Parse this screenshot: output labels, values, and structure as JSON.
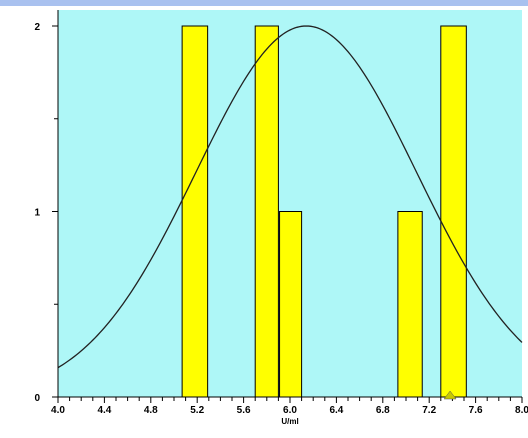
{
  "chart_data": {
    "type": "bar",
    "title": "",
    "xlabel": "U/ml",
    "ylabel": "",
    "xlim": [
      4.0,
      8.0
    ],
    "ylim": [
      0,
      2
    ],
    "x_ticks_labeled": [
      "4.0",
      "4.4",
      "4.8",
      "5.2",
      "5.6",
      "6.0",
      "6.4",
      "6.8",
      "7.2",
      "7.6",
      "8.0"
    ],
    "y_ticks_labeled": [
      "0",
      "1",
      "2"
    ],
    "bars": [
      {
        "x0": 5.07,
        "x1": 5.29,
        "value": 2
      },
      {
        "x0": 5.7,
        "x1": 5.9,
        "value": 2
      },
      {
        "x0": 5.91,
        "x1": 6.1,
        "value": 1
      },
      {
        "x0": 6.93,
        "x1": 7.14,
        "value": 1
      },
      {
        "x0": 7.3,
        "x1": 7.52,
        "value": 2
      }
    ],
    "normal_curve": {
      "mean": 6.14,
      "sd": 0.95,
      "peak": 2.0
    },
    "marker_x": 7.38,
    "grid": false,
    "colors": {
      "plot_background": "#aef7f7",
      "bar_fill": "#ffff00",
      "bar_stroke": "#000000",
      "curve": "#222222",
      "top_border": "#a9c1ef",
      "marker": "#c8c800"
    }
  }
}
